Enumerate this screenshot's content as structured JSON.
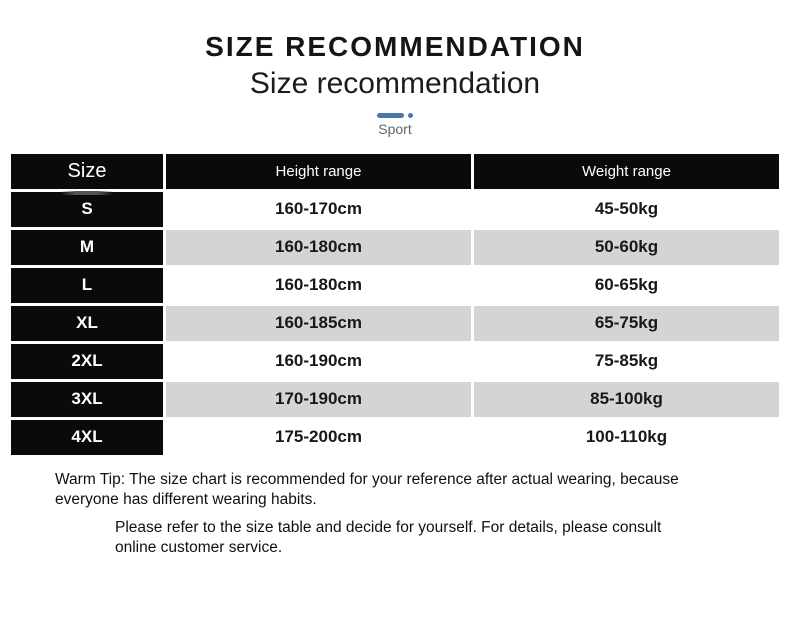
{
  "page": {
    "title": "SIZE RECOMMENDATION",
    "subtitle": "Size recommendation",
    "category_label": "Sport"
  },
  "colors": {
    "accent_blue": "#4a78a5",
    "table_black": "#0a0a0a",
    "row_alt_gray": "#d4d4d4"
  },
  "table": {
    "columns": [
      "Size",
      "Height range",
      "Weight range"
    ],
    "rows": [
      {
        "size": "S",
        "height": "160-170cm",
        "weight": "45-50kg"
      },
      {
        "size": "M",
        "height": "160-180cm",
        "weight": "50-60kg"
      },
      {
        "size": "L",
        "height": "160-180cm",
        "weight": "60-65kg"
      },
      {
        "size": "XL",
        "height": "160-185cm",
        "weight": "65-75kg"
      },
      {
        "size": "2XL",
        "height": "160-190cm",
        "weight": "75-85kg"
      },
      {
        "size": "3XL",
        "height": "170-190cm",
        "weight": "85-100kg"
      },
      {
        "size": "4XL",
        "height": "175-200cm",
        "weight": "100-110kg"
      }
    ]
  },
  "notes": {
    "warm_tip": "Warm Tip: The size chart is recommended for your reference after actual wearing, because everyone has different wearing habits.",
    "consult": "Please refer to the size table and decide for yourself. For details, please consult online customer service."
  },
  "chart_data": {
    "type": "table",
    "title": "Size recommendation",
    "columns": [
      "Size",
      "Height range",
      "Weight range"
    ],
    "rows": [
      [
        "S",
        "160-170cm",
        "45-50kg"
      ],
      [
        "M",
        "160-180cm",
        "50-60kg"
      ],
      [
        "L",
        "160-180cm",
        "60-65kg"
      ],
      [
        "XL",
        "160-185cm",
        "65-75kg"
      ],
      [
        "2XL",
        "160-190cm",
        "75-85kg"
      ],
      [
        "3XL",
        "170-190cm",
        "85-100kg"
      ],
      [
        "4XL",
        "175-200cm",
        "100-110kg"
      ]
    ]
  }
}
